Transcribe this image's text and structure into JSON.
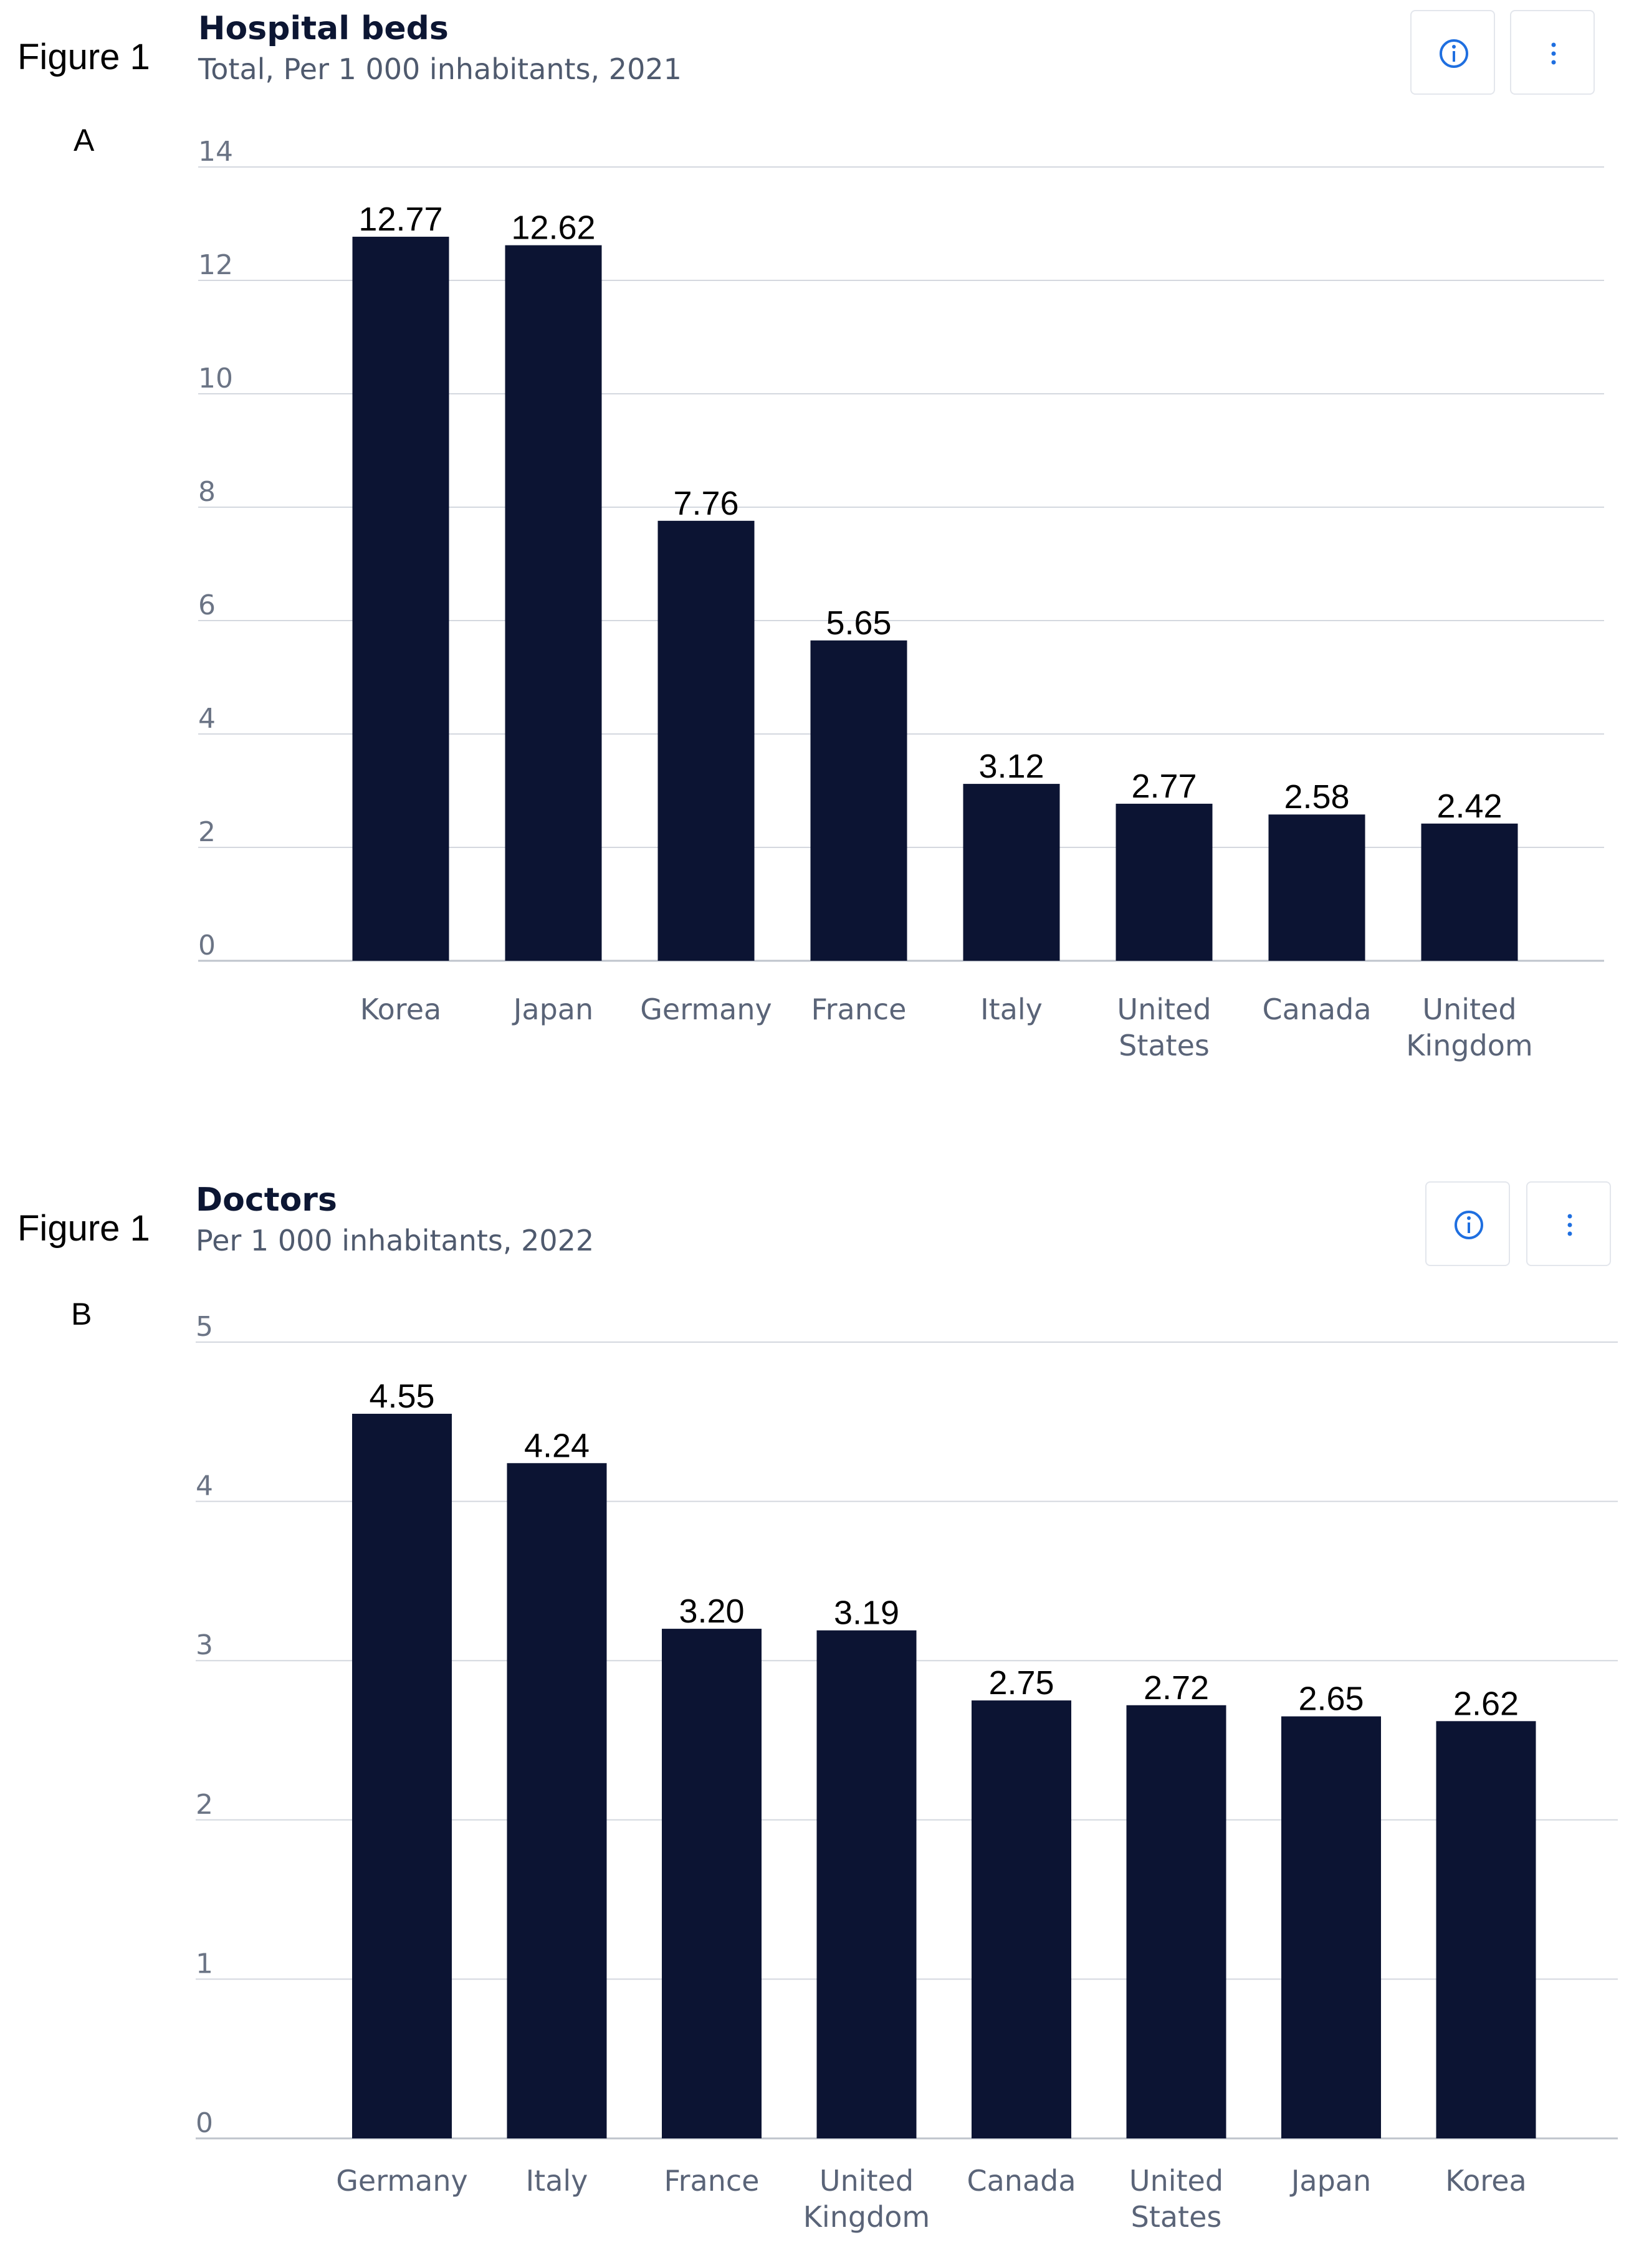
{
  "figures": [
    {
      "figure_label": "Figure 1",
      "panel_letter": "A",
      "title": "Hospital beds",
      "subtitle": "Total, Per 1 000 inhabitants, 2021",
      "info_icon": "info-circle-icon",
      "menu_icon": "vertical-ellipsis-icon"
    },
    {
      "figure_label": "Figure 1",
      "panel_letter": "B",
      "title": "Doctors",
      "subtitle": "Per 1 000 inhabitants, 2022",
      "info_icon": "info-circle-icon",
      "menu_icon": "vertical-ellipsis-icon"
    }
  ],
  "colors": {
    "bar": "#0c1433",
    "gridline": "#d4d8df",
    "baseline": "#bfc4cc",
    "icon": "#1f6fe0"
  },
  "chart_data": [
    {
      "type": "bar",
      "title": "Hospital beds",
      "subtitle": "Total, Per 1 000 inhabitants, 2021",
      "categories": [
        "Korea",
        "Japan",
        "Germany",
        "France",
        "Italy",
        "United States",
        "Canada",
        "United Kingdom"
      ],
      "values": [
        12.77,
        12.62,
        7.76,
        5.65,
        3.12,
        2.77,
        2.58,
        2.42
      ],
      "value_labels": [
        "12.77",
        "12.62",
        "7.76",
        "5.65",
        "3.12",
        "2.77",
        "2.58",
        "2.42"
      ],
      "yticks": [
        0,
        2,
        4,
        6,
        8,
        10,
        12,
        14
      ],
      "ylim": [
        0,
        14
      ],
      "grid": true,
      "legend": "none"
    },
    {
      "type": "bar",
      "title": "Doctors",
      "subtitle": "Per 1 000 inhabitants, 2022",
      "categories": [
        "Germany",
        "Italy",
        "France",
        "United Kingdom",
        "Canada",
        "United States",
        "Japan",
        "Korea"
      ],
      "values": [
        4.55,
        4.24,
        3.2,
        3.19,
        2.75,
        2.72,
        2.65,
        2.62
      ],
      "value_labels": [
        "4.55",
        "4.24",
        "3.20",
        "3.19",
        "2.75",
        "2.72",
        "2.65",
        "2.62"
      ],
      "yticks": [
        0,
        1,
        2,
        3,
        4,
        5
      ],
      "ylim": [
        0,
        5
      ],
      "grid": true,
      "legend": "none"
    }
  ]
}
